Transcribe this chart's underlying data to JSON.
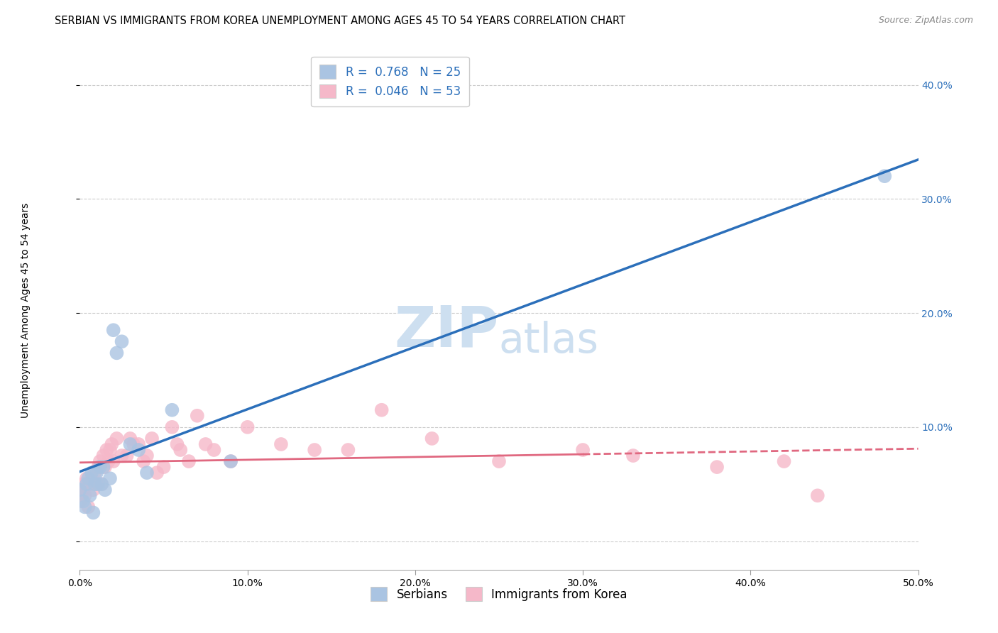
{
  "title": "SERBIAN VS IMMIGRANTS FROM KOREA UNEMPLOYMENT AMONG AGES 45 TO 54 YEARS CORRELATION CHART",
  "source": "Source: ZipAtlas.com",
  "ylabel": "Unemployment Among Ages 45 to 54 years",
  "xlim": [
    0,
    0.5
  ],
  "ylim": [
    -0.025,
    0.43
  ],
  "xticks": [
    0.0,
    0.1,
    0.2,
    0.3,
    0.4,
    0.5
  ],
  "yticks": [
    0.0,
    0.1,
    0.2,
    0.3,
    0.4
  ],
  "xtick_labels": [
    "0.0%",
    "10.0%",
    "20.0%",
    "30.0%",
    "40.0%",
    "50.0%"
  ],
  "ytick_labels_right": [
    "",
    "10.0%",
    "20.0%",
    "30.0%",
    "40.0%"
  ],
  "legend_labels": [
    "Serbians",
    "Immigrants from Korea"
  ],
  "serbian_R": "0.768",
  "serbian_N": "25",
  "korean_R": "0.046",
  "korean_N": "53",
  "serbian_color": "#aac4e2",
  "korean_color": "#f5b8c9",
  "serbian_line_color": "#2b6fba",
  "korean_line_color": "#e06880",
  "background_color": "#ffffff",
  "grid_color": "#cccccc",
  "watermark_zip": "ZIP",
  "watermark_atlas": "atlas",
  "watermark_color": "#cddff0",
  "serbian_x": [
    0.0,
    0.002,
    0.003,
    0.004,
    0.005,
    0.006,
    0.007,
    0.008,
    0.009,
    0.01,
    0.011,
    0.012,
    0.013,
    0.014,
    0.015,
    0.018,
    0.02,
    0.022,
    0.025,
    0.03,
    0.035,
    0.04,
    0.055,
    0.09,
    0.48
  ],
  "serbian_y": [
    0.045,
    0.035,
    0.03,
    0.05,
    0.055,
    0.04,
    0.06,
    0.025,
    0.05,
    0.06,
    0.05,
    0.065,
    0.05,
    0.065,
    0.045,
    0.055,
    0.185,
    0.165,
    0.175,
    0.085,
    0.08,
    0.06,
    0.115,
    0.07,
    0.32
  ],
  "korean_x": [
    0.0,
    0.0,
    0.001,
    0.002,
    0.003,
    0.004,
    0.005,
    0.006,
    0.007,
    0.008,
    0.009,
    0.01,
    0.011,
    0.012,
    0.013,
    0.014,
    0.015,
    0.016,
    0.017,
    0.018,
    0.019,
    0.02,
    0.022,
    0.025,
    0.028,
    0.03,
    0.032,
    0.035,
    0.038,
    0.04,
    0.043,
    0.046,
    0.05,
    0.055,
    0.058,
    0.06,
    0.065,
    0.07,
    0.075,
    0.08,
    0.09,
    0.1,
    0.12,
    0.14,
    0.16,
    0.18,
    0.21,
    0.25,
    0.3,
    0.33,
    0.38,
    0.42,
    0.44
  ],
  "korean_y": [
    0.045,
    0.035,
    0.04,
    0.05,
    0.04,
    0.055,
    0.03,
    0.05,
    0.055,
    0.045,
    0.06,
    0.05,
    0.065,
    0.07,
    0.05,
    0.075,
    0.065,
    0.08,
    0.07,
    0.08,
    0.085,
    0.07,
    0.09,
    0.075,
    0.075,
    0.09,
    0.085,
    0.085,
    0.07,
    0.075,
    0.09,
    0.06,
    0.065,
    0.1,
    0.085,
    0.08,
    0.07,
    0.11,
    0.085,
    0.08,
    0.07,
    0.1,
    0.085,
    0.08,
    0.08,
    0.115,
    0.09,
    0.07,
    0.08,
    0.075,
    0.065,
    0.07,
    0.04
  ],
  "title_fontsize": 10.5,
  "axis_fontsize": 10,
  "tick_fontsize": 10,
  "legend_fontsize": 12
}
